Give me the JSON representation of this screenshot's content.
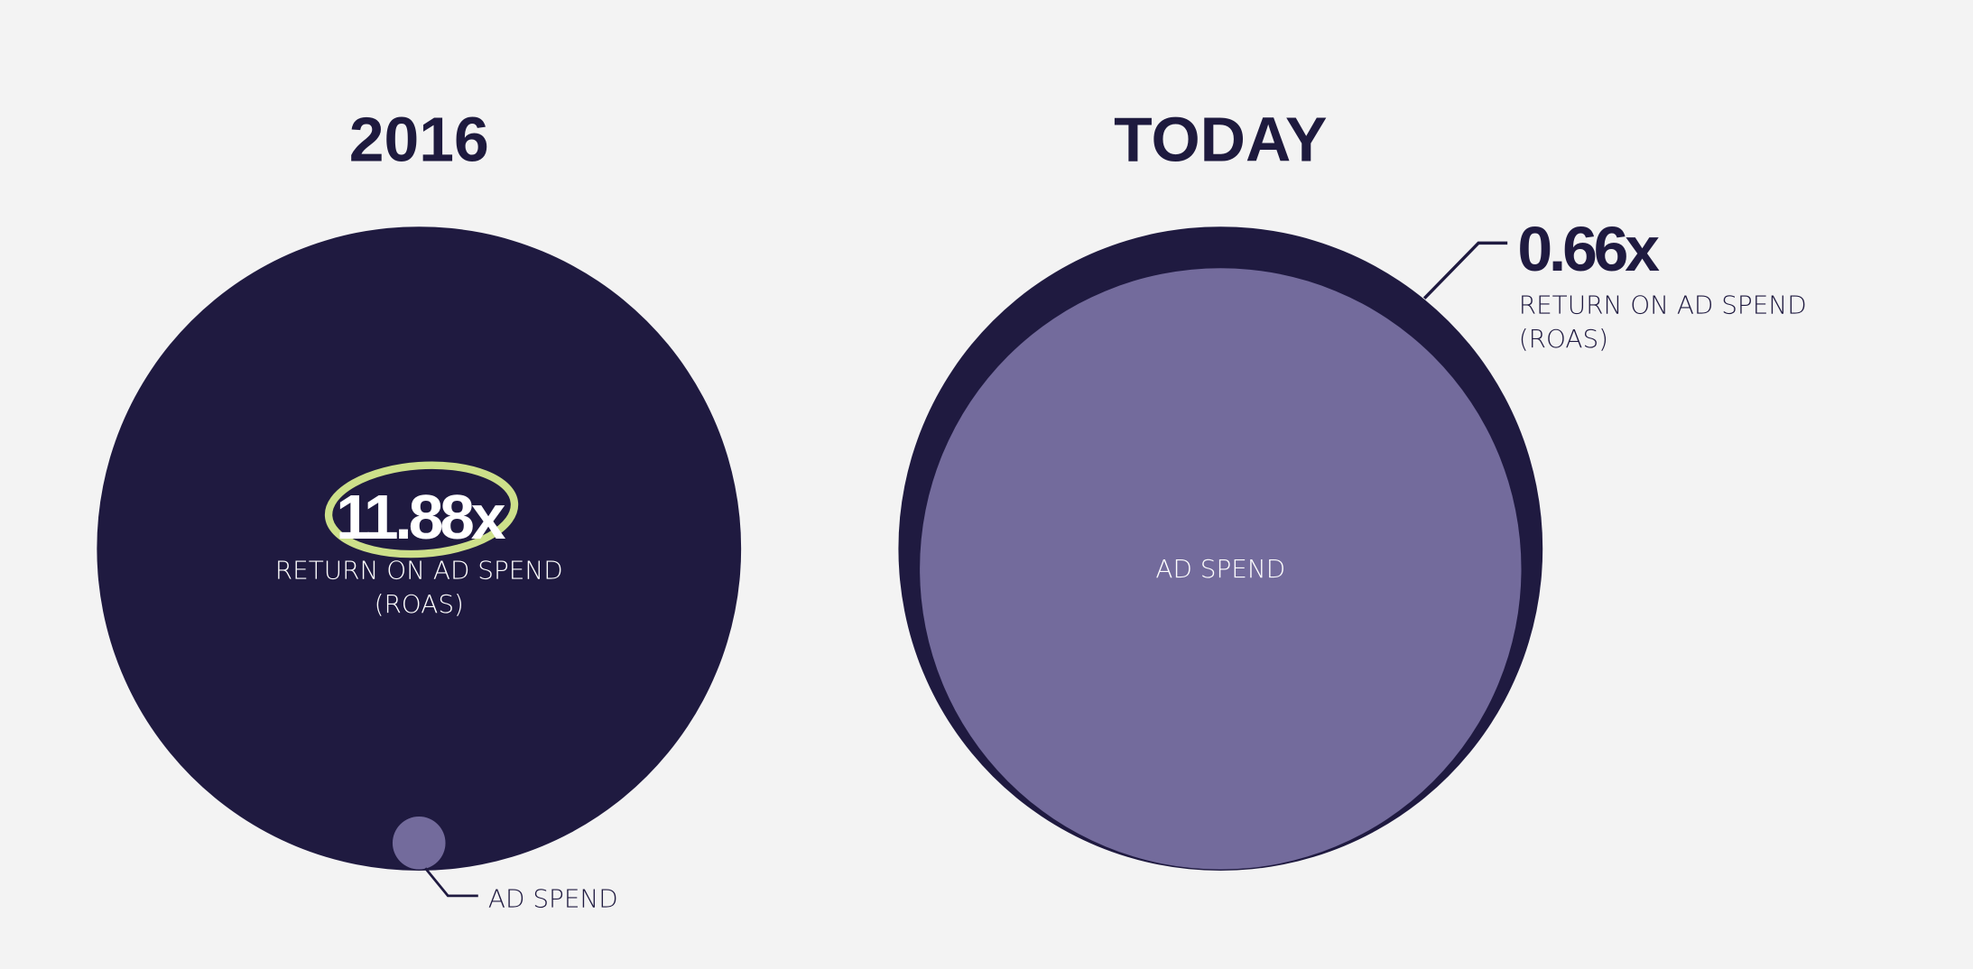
{
  "panels": [
    {
      "title": "2016",
      "roas_value": "11.88x",
      "roas_label": "RETURN ON AD SPEND",
      "roas_abbr": "(ROAS)",
      "spend_label": "AD SPEND"
    },
    {
      "title": "TODAY",
      "roas_value": "0.66x",
      "roas_label": "RETURN ON AD SPEND",
      "roas_abbr": "(ROAS)",
      "spend_label": "AD SPEND"
    }
  ]
}
